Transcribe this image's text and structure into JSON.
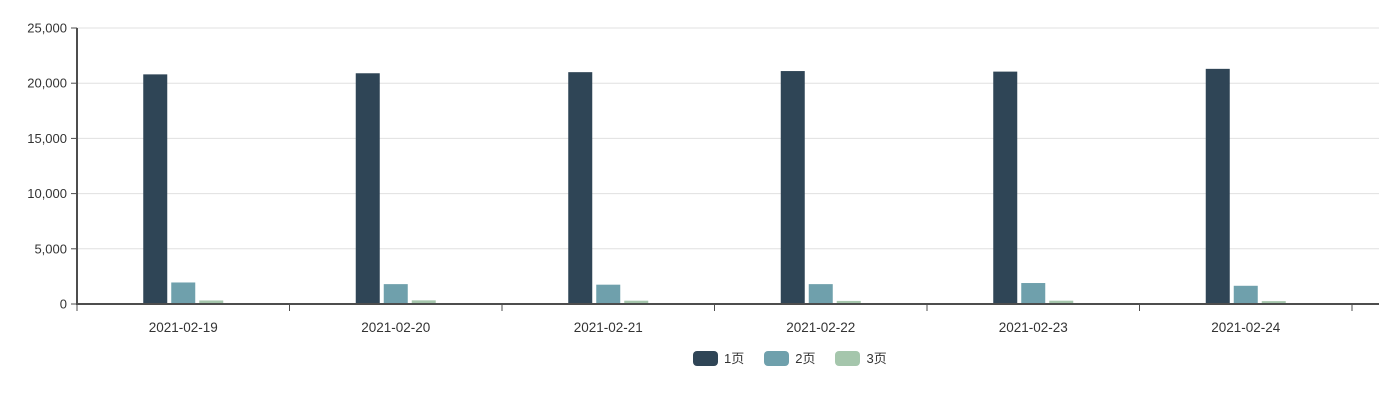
{
  "chart_data": {
    "type": "bar",
    "title": "",
    "xlabel": "",
    "ylabel": "",
    "categories": [
      "2021-02-19",
      "2021-02-20",
      "2021-02-21",
      "2021-02-22",
      "2021-02-23",
      "2021-02-24"
    ],
    "series": [
      {
        "name": "1页",
        "color": "#2F4556",
        "values": [
          20800,
          20900,
          21000,
          21100,
          21050,
          21300
        ]
      },
      {
        "name": "2页",
        "color": "#6FA0AC",
        "values": [
          1950,
          1800,
          1750,
          1800,
          1900,
          1650
        ]
      },
      {
        "name": "3页",
        "color": "#A5C6AC",
        "values": [
          320,
          330,
          300,
          280,
          300,
          260
        ]
      }
    ],
    "ylim": [
      0,
      25000
    ],
    "y_ticks": [
      0,
      5000,
      10000,
      15000,
      20000,
      25000
    ],
    "grid": true,
    "legend_position": "bottom-center",
    "colors": {
      "axis": "#4d4d4d",
      "gridline": "#e0e0e0",
      "tick_label": "#333333",
      "background": "#ffffff"
    }
  }
}
